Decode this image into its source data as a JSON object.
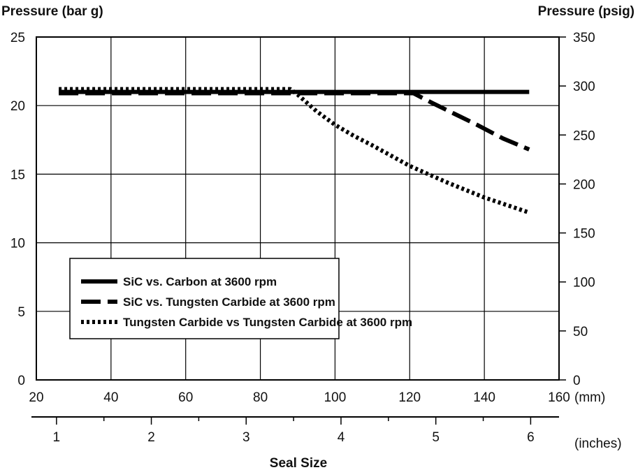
{
  "chart_data": {
    "type": "line",
    "xlabel": "Seal Size",
    "x_mm": {
      "unit_label": "(mm)",
      "range": [
        20,
        160
      ],
      "ticks": [
        20,
        40,
        60,
        80,
        100,
        120,
        140,
        160
      ]
    },
    "x_inches": {
      "unit_label": "(inches)",
      "range": [
        1,
        6
      ],
      "ticks": [
        1,
        2,
        3,
        4,
        5,
        6
      ]
    },
    "y_left": {
      "label": "Pressure (bar g)",
      "range": [
        0,
        25
      ],
      "ticks": [
        0,
        5,
        10,
        15,
        20,
        25
      ]
    },
    "y_right": {
      "label": "Pressure (psig)",
      "range": [
        0,
        350
      ],
      "ticks": [
        0,
        50,
        100,
        150,
        200,
        250,
        300,
        350
      ]
    },
    "grid": true,
    "legend_position": "lower-left",
    "series": [
      {
        "name": "SiC vs. Carbon at 3600 rpm",
        "style": "solid",
        "x": [
          26,
          152
        ],
        "y": [
          21.0,
          21.0
        ]
      },
      {
        "name": "SiC vs. Tungsten Carbide at 3600 rpm",
        "style": "dashed",
        "x": [
          26,
          60,
          90,
          121,
          126,
          132,
          138,
          145,
          152
        ],
        "y": [
          20.9,
          20.9,
          20.9,
          20.9,
          20.2,
          19.4,
          18.6,
          17.6,
          16.8
        ]
      },
      {
        "name": "Tungsten Carbide vs Tungsten Carbide at 3600 rpm",
        "style": "dotted",
        "x": [
          26,
          60,
          88,
          90,
          95,
          100,
          105,
          110,
          120,
          130,
          140,
          152
        ],
        "y": [
          21.2,
          21.2,
          21.2,
          20.8,
          19.6,
          18.6,
          17.8,
          17.1,
          15.6,
          14.4,
          13.3,
          12.2
        ]
      }
    ]
  }
}
